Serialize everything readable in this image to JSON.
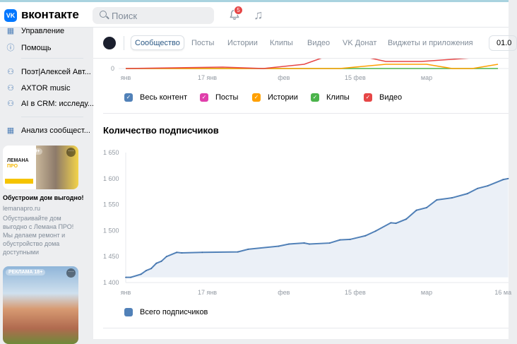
{
  "header": {
    "logo_text": "VK",
    "brand": "вконтакте",
    "search_placeholder": "Поиск",
    "notifications_count": "5",
    "icons": [
      "search-icon",
      "bell-icon",
      "music-icon"
    ]
  },
  "sidebar": {
    "items": [
      {
        "icon": "grid-icon",
        "label": "Управление"
      },
      {
        "icon": "help-icon",
        "label": "Помощь"
      },
      {
        "icon": "group-icon",
        "label": "Поэт|Алексей Авт..."
      },
      {
        "icon": "group-icon",
        "label": "AXTOR music"
      },
      {
        "icon": "group-icon",
        "label": "AI в CRM: исследу..."
      },
      {
        "icon": "grid-icon",
        "label": "Анализ сообщест..."
      }
    ],
    "ads": [
      {
        "label": "РЕКЛАМА 0+",
        "title": "Обустроим дом выгодно!",
        "domain": "lemanapro.ru",
        "text": "Обустраивайте дом выгодно с Лемана ПРО! Мы делаем ремонт и обустройство дома доступными",
        "image_brand": "ЛЕМАНА ПРО"
      },
      {
        "label": "РЕКЛАМА 18+"
      }
    ]
  },
  "tabs": {
    "items": [
      "Сообщество",
      "Посты",
      "Истории",
      "Клипы",
      "Видео",
      "VK Донат",
      "Виджеты и приложения"
    ],
    "active": "Сообщество",
    "date_value": "01.0"
  },
  "content_legend": [
    {
      "label": "Весь контент",
      "color": "#5181b8"
    },
    {
      "label": "Посты",
      "color": "#e03fab"
    },
    {
      "label": "Истории",
      "color": "#ffa000"
    },
    {
      "label": "Клипы",
      "color": "#4bb34b"
    },
    {
      "label": "Видео",
      "color": "#e64646"
    }
  ],
  "chart_data": [
    {
      "type": "line",
      "partial": true,
      "y_ticks": [
        "0"
      ],
      "x_ticks": [
        "янв",
        "17 янв",
        "фев",
        "15 фев",
        "мар"
      ],
      "series": [
        {
          "name": "Видео",
          "color": "#e64646",
          "points": [
            [
              "1 янв",
              0
            ],
            [
              "20 янв",
              1
            ],
            [
              "28 янв",
              0
            ],
            [
              "5 фев",
              3
            ],
            [
              "12 фев",
              12
            ],
            [
              "21 фев",
              5
            ],
            [
              "28 фев",
              5
            ],
            [
              "8 мар",
              7
            ],
            [
              "15 мар",
              9
            ]
          ]
        },
        {
          "name": "Истории",
          "color": "#ffa000",
          "points": [
            [
              "1 янв",
              0
            ],
            [
              "12 фев",
              0
            ],
            [
              "21 фев",
              3
            ],
            [
              "1 мар",
              3
            ],
            [
              "6 мар",
              0
            ],
            [
              "10 мар",
              0
            ],
            [
              "15 мар",
              3
            ]
          ]
        },
        {
          "name": "Клипы",
          "color": "#4bb34b",
          "points": [
            [
              "1 янв",
              0
            ],
            [
              "15 мар",
              0
            ]
          ]
        }
      ]
    },
    {
      "type": "area",
      "title": "Количество подписчиков",
      "ylim": [
        1400,
        1650
      ],
      "y_ticks": [
        "1 400",
        "1 450",
        "1 500",
        "1 550",
        "1 600",
        "1 650"
      ],
      "x_ticks": [
        {
          "label": "янв",
          "date": "1 янв"
        },
        {
          "label": "17 янв",
          "date": "17 янв"
        },
        {
          "label": "фев",
          "date": "1 фев"
        },
        {
          "label": "15 фев",
          "date": "15 фев"
        },
        {
          "label": "мар",
          "date": "1 мар"
        },
        {
          "label": "16 ма",
          "date": "16 мар"
        }
      ],
      "grid": false,
      "legend": "bottom-left",
      "series": [
        {
          "name": "Всего подписчиков",
          "color": "#5181b8",
          "points": [
            [
              "1 янв",
              1410
            ],
            [
              "2 янв",
              1410
            ],
            [
              "4 янв",
              1416
            ],
            [
              "5 янв",
              1423
            ],
            [
              "6 янв",
              1427
            ],
            [
              "7 янв",
              1437
            ],
            [
              "8 янв",
              1441
            ],
            [
              "9 янв",
              1450
            ],
            [
              "11 янв",
              1458
            ],
            [
              "12 янв",
              1457
            ],
            [
              "16 янв",
              1458
            ],
            [
              "23 янв",
              1459
            ],
            [
              "25 янв",
              1464
            ],
            [
              "31 янв",
              1470
            ],
            [
              "2 фев",
              1474
            ],
            [
              "5 фев",
              1476
            ],
            [
              "6 фев",
              1474
            ],
            [
              "10 фев",
              1476
            ],
            [
              "12 фев",
              1482
            ],
            [
              "14 фев",
              1483
            ],
            [
              "17 фев",
              1490
            ],
            [
              "19 фев",
              1499
            ],
            [
              "22 фев",
              1515
            ],
            [
              "23 фев",
              1514
            ],
            [
              "25 фев",
              1522
            ],
            [
              "27 фев",
              1539
            ],
            [
              "1 мар",
              1544
            ],
            [
              "3 мар",
              1559
            ],
            [
              "6 мар",
              1563
            ],
            [
              "9 мар",
              1571
            ],
            [
              "11 мар",
              1581
            ],
            [
              "13 мар",
              1586
            ],
            [
              "16 мар",
              1598
            ],
            [
              "17 мар",
              1600
            ]
          ]
        }
      ]
    }
  ]
}
